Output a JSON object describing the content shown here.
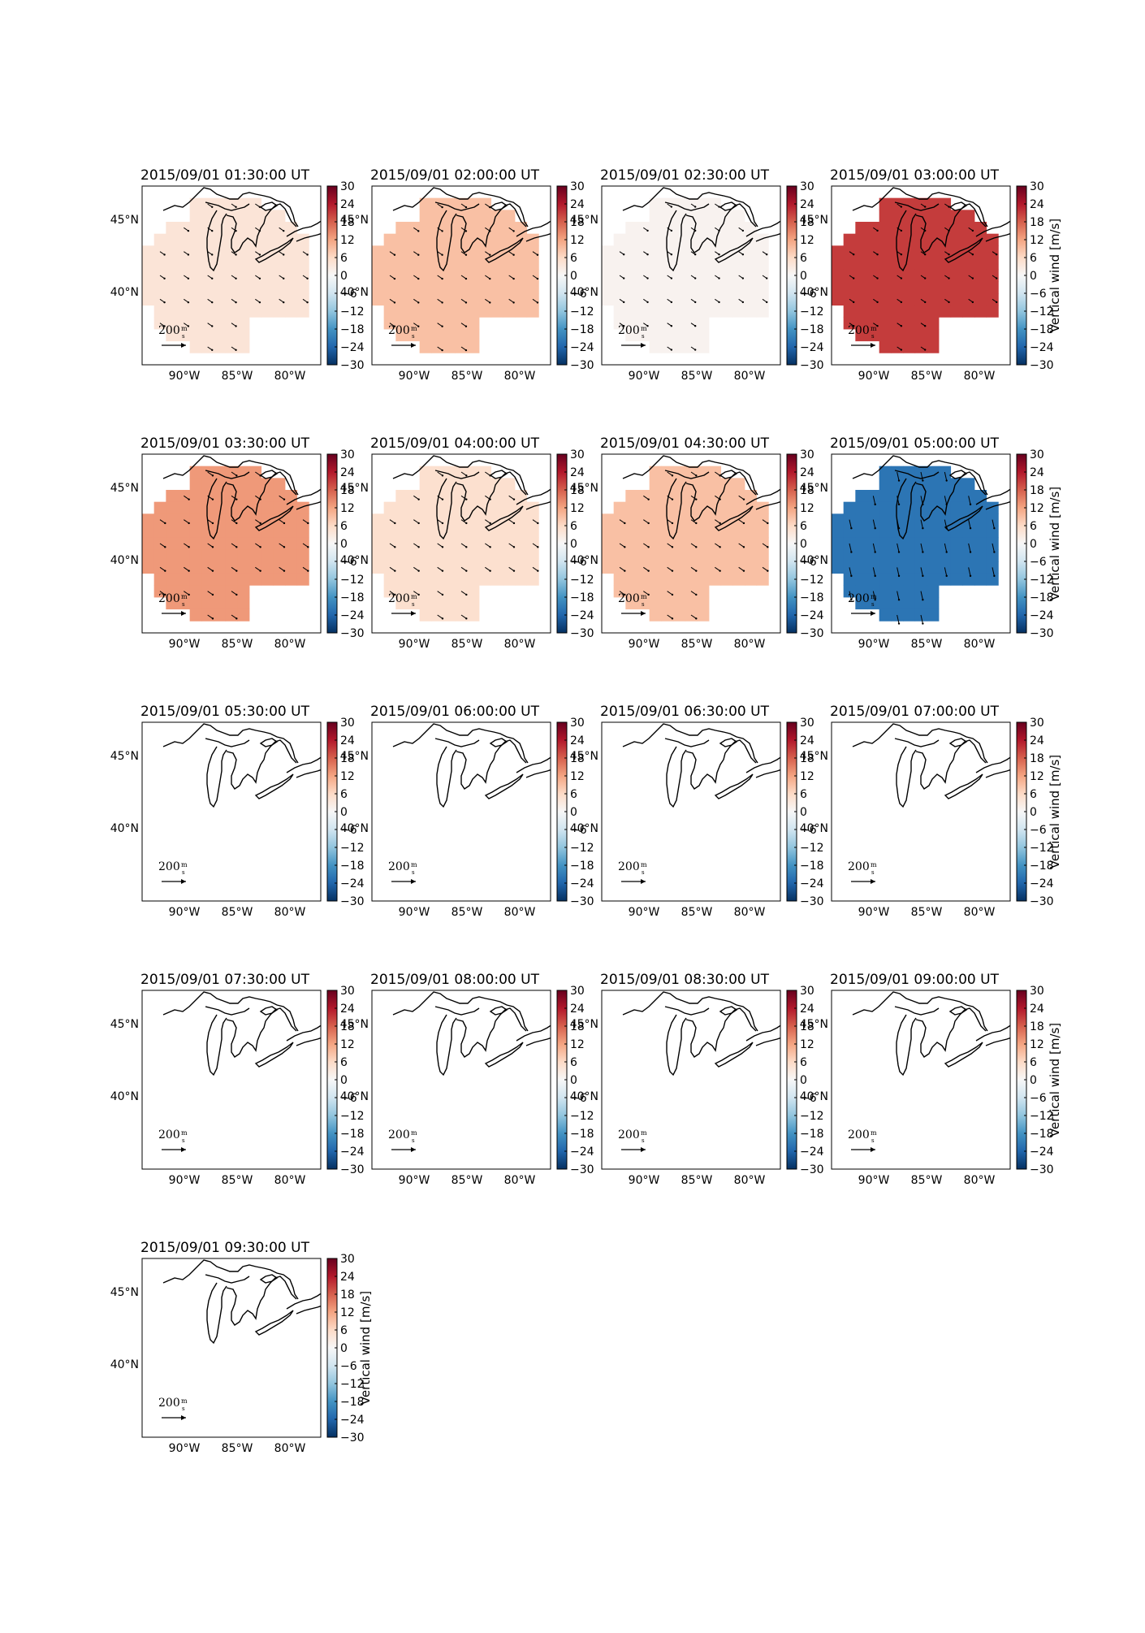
{
  "figure": {
    "panels": [
      {
        "title": "2015/09/01 01:30:00 UT",
        "value": 4,
        "arrow_scale": 0.75,
        "colorbar_label": ""
      },
      {
        "title": "2015/09/01 02:00:00 UT",
        "value": 9,
        "arrow_scale": 0.8,
        "colorbar_label": ""
      },
      {
        "title": "2015/09/01 02:30:00 UT",
        "value": 1,
        "arrow_scale": 0.7,
        "colorbar_label": ""
      },
      {
        "title": "2015/09/01 03:00:00 UT",
        "value": 21,
        "arrow_scale": 0.7,
        "colorbar_label": "Vertical wind [m/s]"
      },
      {
        "title": "2015/09/01 03:30:00 UT",
        "value": 13,
        "arrow_scale": 0.85,
        "colorbar_label": ""
      },
      {
        "title": "2015/09/01 04:00:00 UT",
        "value": 5,
        "arrow_scale": 0.85,
        "colorbar_label": ""
      },
      {
        "title": "2015/09/01 04:30:00 UT",
        "value": 9,
        "arrow_scale": 0.85,
        "colorbar_label": ""
      },
      {
        "title": "2015/09/01 05:00:00 UT",
        "value": -22,
        "arrow_scale": 1.2,
        "colorbar_label": "Vertical wind [m/s]"
      },
      {
        "title": "2015/09/01 05:30:00 UT",
        "value": null,
        "arrow_scale": 0,
        "colorbar_label": ""
      },
      {
        "title": "2015/09/01 06:00:00 UT",
        "value": null,
        "arrow_scale": 0,
        "colorbar_label": ""
      },
      {
        "title": "2015/09/01 06:30:00 UT",
        "value": null,
        "arrow_scale": 0,
        "colorbar_label": ""
      },
      {
        "title": "2015/09/01 07:00:00 UT",
        "value": null,
        "arrow_scale": 0,
        "colorbar_label": "Vertical wind [m/s]"
      },
      {
        "title": "2015/09/01 07:30:00 UT",
        "value": null,
        "arrow_scale": 0,
        "colorbar_label": ""
      },
      {
        "title": "2015/09/01 08:00:00 UT",
        "value": null,
        "arrow_scale": 0,
        "colorbar_label": ""
      },
      {
        "title": "2015/09/01 08:30:00 UT",
        "value": null,
        "arrow_scale": 0,
        "colorbar_label": ""
      },
      {
        "title": "2015/09/01 09:00:00 UT",
        "value": null,
        "arrow_scale": 0,
        "colorbar_label": "Vertical wind [m/s]"
      },
      {
        "title": "2015/09/01 09:30:00 UT",
        "value": null,
        "arrow_scale": 0,
        "colorbar_label": "Vertical wind [m/s]"
      }
    ],
    "x_ticks": [
      "90°W",
      "85°W",
      "80°W"
    ],
    "y_ticks": [
      "45°N",
      "40°N"
    ],
    "colorbar": {
      "ticks": [
        "30",
        "24",
        "18",
        "12",
        "6",
        "0",
        "−6",
        "−12",
        "−18",
        "−24",
        "−30"
      ],
      "range": [
        -30,
        30
      ],
      "colormap": "RdBu_r"
    },
    "reference_arrow": {
      "value": "200",
      "unit_num": "m",
      "unit_den": "s"
    },
    "colors": {
      "land_outline": "#000000",
      "max_red": "#67001f",
      "max_blue": "#053061"
    }
  }
}
